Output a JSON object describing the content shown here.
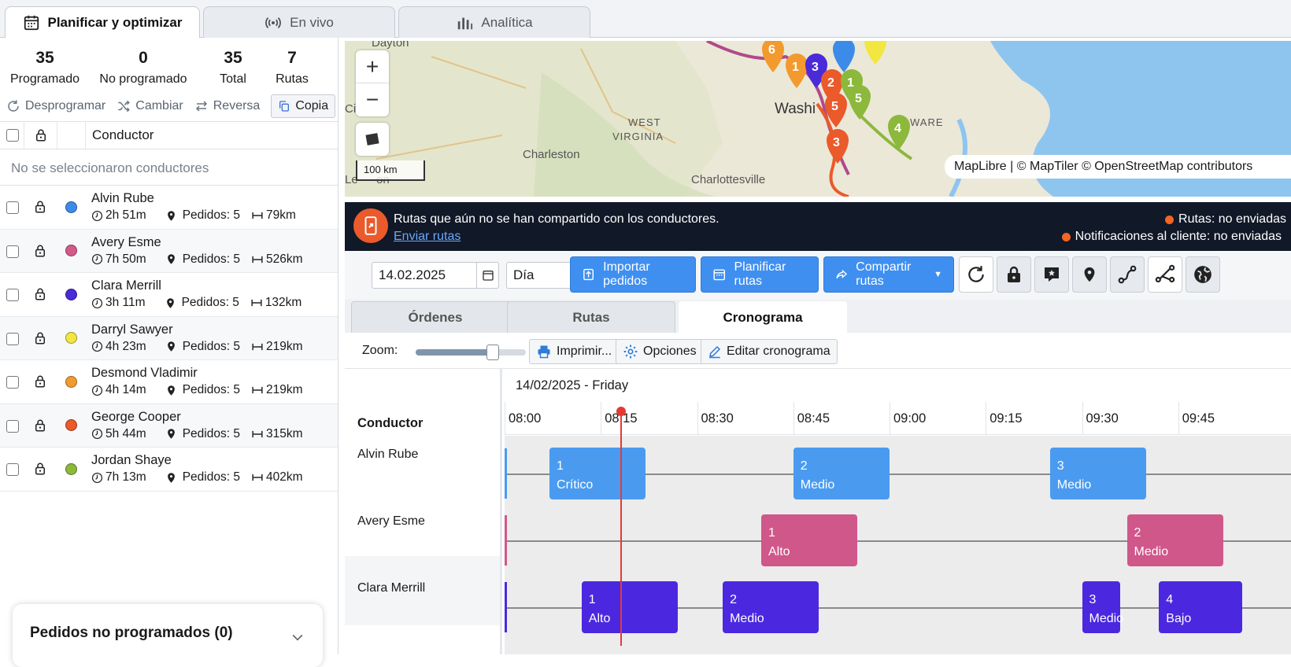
{
  "tabs": [
    {
      "label": "Planificar y optimizar",
      "icon": "calendar-icon"
    },
    {
      "label": "En vivo",
      "icon": "broadcast-icon"
    },
    {
      "label": "Analítica",
      "icon": "bar-chart-icon"
    }
  ],
  "stats": [
    {
      "value": "35",
      "label": "Programado"
    },
    {
      "value": "0",
      "label": "No programado"
    },
    {
      "value": "35",
      "label": "Total"
    },
    {
      "value": "7",
      "label": "Rutas"
    }
  ],
  "actions": {
    "unschedule": "Desprogramar",
    "change": "Cambiar",
    "reverse": "Reversa",
    "copy": "Copia"
  },
  "driver_table": {
    "header": "Conductor",
    "none_selected": "No se seleccionaron conductores"
  },
  "drivers": [
    {
      "name": "Alvin Rube",
      "color": "#3d8be8",
      "time": "2h 51m",
      "orders": "Pedidos: 5",
      "distance": "79km"
    },
    {
      "name": "Avery Esme",
      "color": "#d45a8a",
      "time": "7h 50m",
      "orders": "Pedidos: 5",
      "distance": "526km"
    },
    {
      "name": "Clara Merrill",
      "color": "#4b2ad8",
      "time": "3h 11m",
      "orders": "Pedidos: 5",
      "distance": "132km"
    },
    {
      "name": "Darryl Sawyer",
      "color": "#f2e640",
      "time": "4h 23m",
      "orders": "Pedidos: 5",
      "distance": "219km"
    },
    {
      "name": "Desmond Vladimir",
      "color": "#f39a2e",
      "time": "4h 14m",
      "orders": "Pedidos: 5",
      "distance": "219km"
    },
    {
      "name": "George Cooper",
      "color": "#ea5a2a",
      "time": "5h 44m",
      "orders": "Pedidos: 5",
      "distance": "315km"
    },
    {
      "name": "Jordan Shaye",
      "color": "#8cb83c",
      "time": "7h 13m",
      "orders": "Pedidos: 5",
      "distance": "402km"
    }
  ],
  "unscheduled_panel": {
    "title": "Pedidos no programados (0)"
  },
  "map": {
    "labels": [
      "Dayton",
      "ati",
      "WEST",
      "VIRGINIA",
      "Charleston",
      "Washi",
      "WARE",
      "Charlottesville",
      "Le",
      "on",
      "Cin"
    ],
    "scale": "100 km",
    "attribution": "MapLibre | © MapTiler © OpenStreetMap contributors",
    "zoom_in": "+",
    "zoom_out": "−"
  },
  "notice": {
    "message": "Rutas que aún no se han compartido con los conductores.",
    "link": "Enviar rutas",
    "status_routes": "Rutas: no enviadas",
    "status_notifications": "Notificaciones al cliente: no enviadas"
  },
  "toolbar": {
    "date": "14.02.2025",
    "period": "Día",
    "import": "Importar pedidos",
    "plan": "Planificar rutas",
    "share": "Compartir rutas"
  },
  "subtabs": [
    "Órdenes",
    "Rutas",
    "Cronograma"
  ],
  "zoom_bar": {
    "label": "Zoom:",
    "zoom_level": 0.7,
    "print": "Imprimir...",
    "options": "Opciones",
    "edit": "Editar cronograma"
  },
  "timeline": {
    "date_label": "14/02/2025 - Friday",
    "driver_header": "Conductor",
    "ticks": [
      "08:00",
      "08:15",
      "08:30",
      "08:45",
      "09:00",
      "09:15",
      "09:30",
      "09:45"
    ],
    "now": "08:18",
    "rows": [
      {
        "driver": "Alvin Rube",
        "color": "#4a9bf0",
        "tasks": [
          {
            "num": "1",
            "priority": "Crítico",
            "start": "08:07",
            "end": "08:22"
          },
          {
            "num": "2",
            "priority": "Medio",
            "start": "08:45",
            "end": "09:00"
          },
          {
            "num": "3",
            "priority": "Medio",
            "start": "09:25",
            "end": "09:40"
          }
        ]
      },
      {
        "driver": "Avery Esme",
        "color": "#d0578a",
        "tasks": [
          {
            "num": "1",
            "priority": "Alto",
            "start": "08:40",
            "end": "08:55"
          },
          {
            "num": "2",
            "priority": "Medio",
            "start": "09:37",
            "end": "09:52"
          }
        ]
      },
      {
        "driver": "Clara Merrill",
        "color": "#4b28e0",
        "tasks": [
          {
            "num": "1",
            "priority": "Alto",
            "start": "08:12",
            "end": "08:27"
          },
          {
            "num": "2",
            "priority": "Medio",
            "start": "08:34",
            "end": "08:49"
          },
          {
            "num": "3",
            "priority": "Medio",
            "start": "09:30",
            "end": "09:36"
          },
          {
            "num": "4",
            "priority": "Bajo",
            "start": "09:42",
            "end": "09:55"
          }
        ]
      }
    ]
  }
}
